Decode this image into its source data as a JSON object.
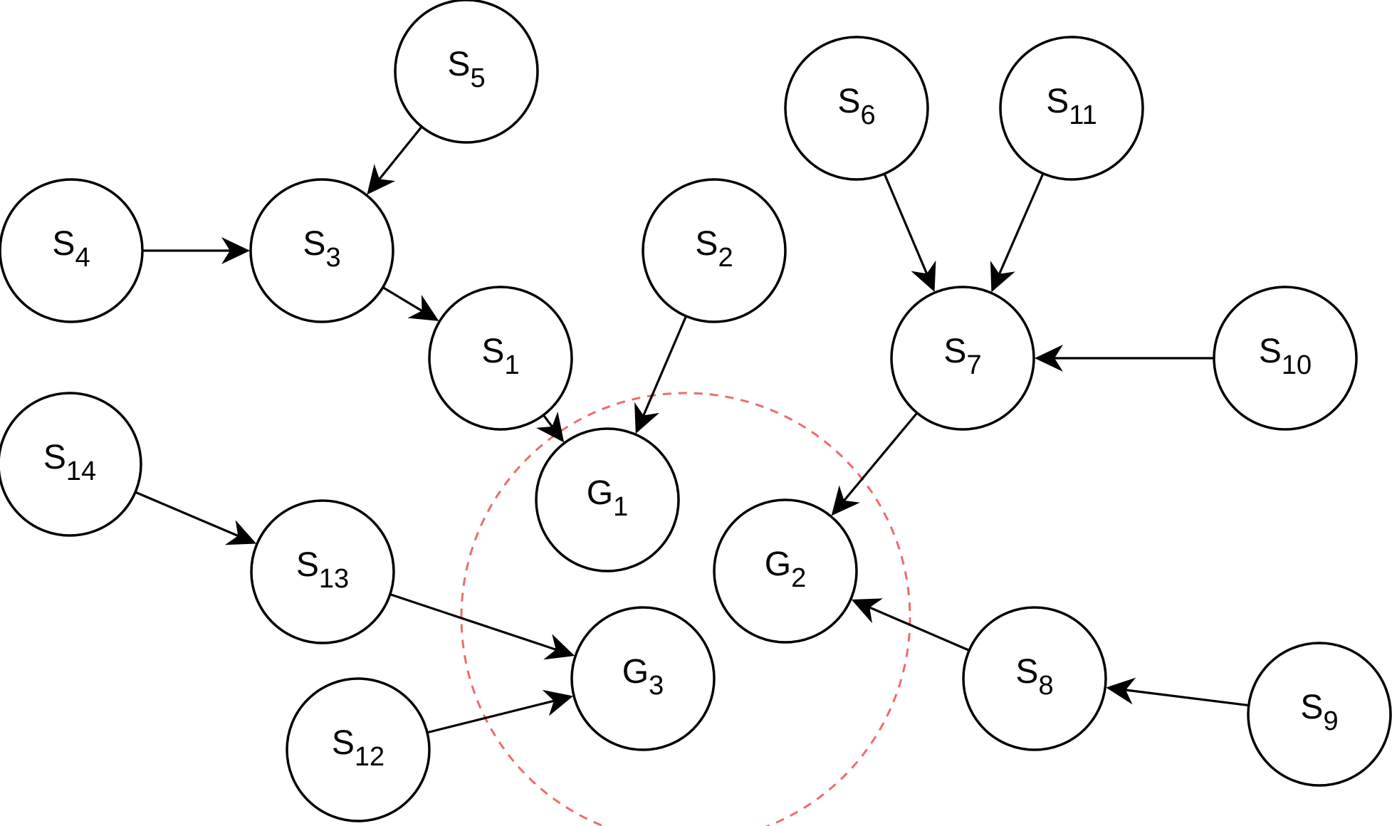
{
  "colors": {
    "node_stroke": "#000000",
    "edge": "#000000",
    "cluster_ring": "#ef6b6b"
  },
  "nodes": [
    {
      "id": "S4",
      "base": "S",
      "sub": "4"
    },
    {
      "id": "S3",
      "base": "S",
      "sub": "3"
    },
    {
      "id": "S5",
      "base": "S",
      "sub": "5"
    },
    {
      "id": "S1",
      "base": "S",
      "sub": "1"
    },
    {
      "id": "S2",
      "base": "S",
      "sub": "2"
    },
    {
      "id": "S6",
      "base": "S",
      "sub": "6"
    },
    {
      "id": "S11",
      "base": "S",
      "sub": "11"
    },
    {
      "id": "S7",
      "base": "S",
      "sub": "7"
    },
    {
      "id": "S10",
      "base": "S",
      "sub": "10"
    },
    {
      "id": "S14",
      "base": "S",
      "sub": "14"
    },
    {
      "id": "S13",
      "base": "S",
      "sub": "13"
    },
    {
      "id": "S12",
      "base": "S",
      "sub": "12"
    },
    {
      "id": "G1",
      "base": "G",
      "sub": "1"
    },
    {
      "id": "G2",
      "base": "G",
      "sub": "2"
    },
    {
      "id": "G3",
      "base": "G",
      "sub": "3"
    },
    {
      "id": "S8",
      "base": "S",
      "sub": "8"
    },
    {
      "id": "S9",
      "base": "S",
      "sub": "9"
    }
  ],
  "edges": [
    {
      "from": "S4",
      "to": "S3"
    },
    {
      "from": "S5",
      "to": "S3"
    },
    {
      "from": "S3",
      "to": "S1"
    },
    {
      "from": "S1",
      "to": "G1"
    },
    {
      "from": "S2",
      "to": "G1"
    },
    {
      "from": "S6",
      "to": "S7"
    },
    {
      "from": "S11",
      "to": "S7"
    },
    {
      "from": "S10",
      "to": "S7"
    },
    {
      "from": "S7",
      "to": "G2"
    },
    {
      "from": "S14",
      "to": "S13"
    },
    {
      "from": "S13",
      "to": "G3"
    },
    {
      "from": "S12",
      "to": "G3"
    },
    {
      "from": "S8",
      "to": "G2"
    },
    {
      "from": "S9",
      "to": "S8"
    }
  ],
  "cluster": {
    "members": [
      "G1",
      "G2",
      "G3"
    ],
    "style": "dashed"
  }
}
